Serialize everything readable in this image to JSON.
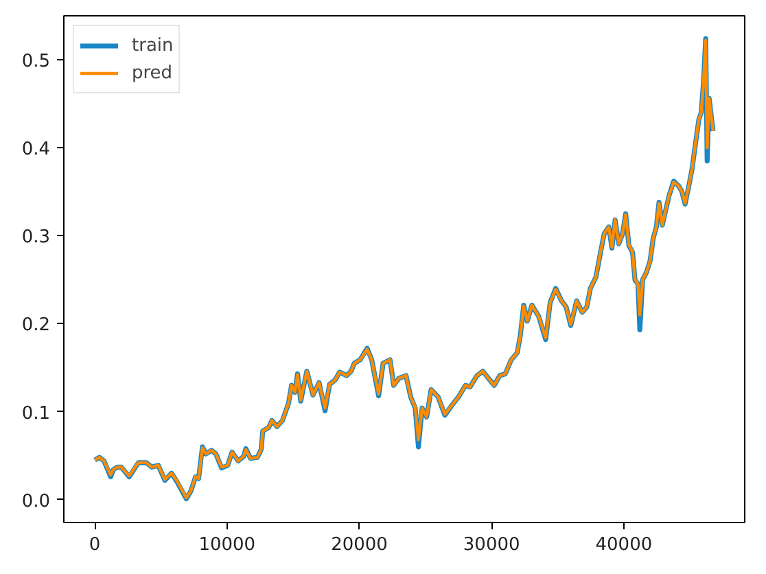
{
  "chart_data": {
    "type": "line",
    "x": [
      0,
      350,
      700,
      1200,
      1400,
      1700,
      2000,
      2600,
      3300,
      3900,
      4300,
      4800,
      5300,
      5800,
      6230,
      6920,
      7270,
      7620,
      7850,
      8140,
      8400,
      8820,
      9160,
      9590,
      10050,
      10380,
      10840,
      11250,
      11420,
      11770,
      12290,
      12580,
      12700,
      13150,
      13390,
      13770,
      14190,
      14640,
      14880,
      15130,
      15330,
      15570,
      16030,
      16500,
      16960,
      17410,
      17750,
      18170,
      18520,
      19040,
      19380,
      19620,
      20070,
      20590,
      20940,
      21460,
      21800,
      22320,
      22600,
      23010,
      23530,
      23880,
      24230,
      24470,
      24750,
      25090,
      25430,
      25950,
      26470,
      26990,
      27510,
      28030,
      28370,
      28900,
      29340,
      29760,
      30200,
      30620,
      31040,
      31490,
      31940,
      32180,
      32430,
      32700,
      33050,
      33570,
      34090,
      34430,
      34850,
      35290,
      35640,
      35990,
      36430,
      36850,
      37200,
      37470,
      37890,
      38240,
      38510,
      38860,
      39100,
      39340,
      39620,
      39900,
      40140,
      40380,
      40660,
      40840,
      41070,
      41210,
      41420,
      41700,
      41980,
      42220,
      42460,
      42660,
      42910,
      43150,
      43430,
      43770,
      44120,
      44370,
      44630,
      44880,
      45150,
      45430,
      45670,
      45850,
      46020,
      46190,
      46300,
      46450,
      46600,
      46750
    ],
    "series": [
      {
        "name": "train",
        "color": "#1a86c7",
        "values": [
          0.045,
          0.048,
          0.044,
          0.026,
          0.034,
          0.037,
          0.037,
          0.026,
          0.042,
          0.042,
          0.037,
          0.039,
          0.022,
          0.03,
          0.02,
          0.001,
          0.01,
          0.026,
          0.024,
          0.06,
          0.052,
          0.056,
          0.052,
          0.036,
          0.039,
          0.054,
          0.044,
          0.049,
          0.058,
          0.047,
          0.048,
          0.057,
          0.078,
          0.082,
          0.09,
          0.083,
          0.09,
          0.109,
          0.13,
          0.122,
          0.143,
          0.112,
          0.146,
          0.119,
          0.133,
          0.101,
          0.131,
          0.136,
          0.145,
          0.141,
          0.146,
          0.155,
          0.159,
          0.172,
          0.159,
          0.118,
          0.155,
          0.159,
          0.13,
          0.138,
          0.141,
          0.117,
          0.104,
          0.06,
          0.104,
          0.094,
          0.125,
          0.117,
          0.096,
          0.107,
          0.117,
          0.13,
          0.128,
          0.141,
          0.146,
          0.138,
          0.13,
          0.141,
          0.143,
          0.159,
          0.167,
          0.187,
          0.221,
          0.203,
          0.221,
          0.208,
          0.182,
          0.224,
          0.24,
          0.226,
          0.219,
          0.198,
          0.226,
          0.213,
          0.219,
          0.24,
          0.253,
          0.281,
          0.302,
          0.31,
          0.286,
          0.318,
          0.291,
          0.302,
          0.325,
          0.289,
          0.281,
          0.25,
          0.245,
          0.193,
          0.25,
          0.258,
          0.271,
          0.297,
          0.31,
          0.338,
          0.312,
          0.328,
          0.346,
          0.362,
          0.357,
          0.351,
          0.336,
          0.354,
          0.375,
          0.406,
          0.432,
          0.44,
          0.474,
          0.524,
          0.385,
          0.456,
          0.437,
          0.419
        ]
      },
      {
        "name": "pred",
        "color": "#ff8c00",
        "values": [
          0.045,
          0.048,
          0.044,
          0.028,
          0.034,
          0.037,
          0.037,
          0.027,
          0.042,
          0.042,
          0.037,
          0.039,
          0.023,
          0.03,
          0.021,
          0.002,
          0.01,
          0.026,
          0.024,
          0.059,
          0.052,
          0.056,
          0.052,
          0.037,
          0.039,
          0.054,
          0.044,
          0.049,
          0.057,
          0.047,
          0.048,
          0.057,
          0.078,
          0.082,
          0.09,
          0.083,
          0.09,
          0.109,
          0.13,
          0.122,
          0.142,
          0.113,
          0.146,
          0.119,
          0.133,
          0.104,
          0.131,
          0.136,
          0.145,
          0.141,
          0.146,
          0.155,
          0.159,
          0.171,
          0.159,
          0.12,
          0.155,
          0.159,
          0.13,
          0.138,
          0.141,
          0.117,
          0.105,
          0.068,
          0.104,
          0.094,
          0.125,
          0.117,
          0.097,
          0.107,
          0.117,
          0.13,
          0.128,
          0.141,
          0.146,
          0.138,
          0.13,
          0.141,
          0.143,
          0.159,
          0.167,
          0.187,
          0.22,
          0.203,
          0.221,
          0.208,
          0.184,
          0.224,
          0.239,
          0.226,
          0.219,
          0.199,
          0.226,
          0.213,
          0.219,
          0.24,
          0.253,
          0.281,
          0.302,
          0.31,
          0.287,
          0.318,
          0.291,
          0.302,
          0.324,
          0.29,
          0.281,
          0.251,
          0.245,
          0.21,
          0.25,
          0.258,
          0.271,
          0.297,
          0.31,
          0.337,
          0.312,
          0.328,
          0.346,
          0.361,
          0.357,
          0.351,
          0.337,
          0.354,
          0.375,
          0.406,
          0.432,
          0.44,
          0.473,
          0.522,
          0.4,
          0.456,
          0.437,
          0.419
        ]
      }
    ],
    "xlim": [
      -2340,
      49140
    ],
    "ylim": [
      -0.026,
      0.55
    ],
    "xticks": [
      0,
      10000,
      20000,
      30000,
      40000
    ],
    "yticks": [
      {
        "value": 0,
        "label": "0.0"
      },
      0.1,
      0.2,
      0.3,
      0.4,
      0.5
    ],
    "legend": "top left"
  }
}
